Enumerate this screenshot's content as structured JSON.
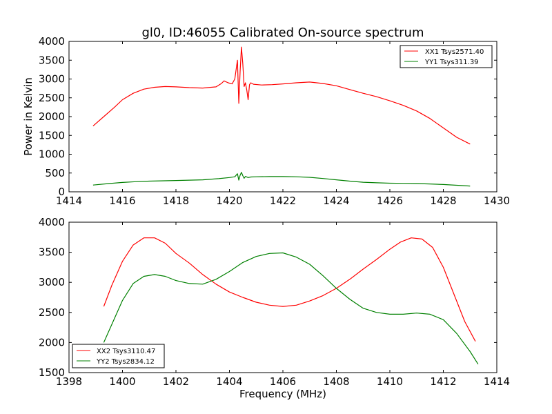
{
  "figure": {
    "title": "gl0, ID:46055 Calibrated On-source spectrum"
  },
  "chart_data": [
    {
      "type": "line",
      "title": "gl0, ID:46055 Calibrated On-source spectrum",
      "xlabel": "",
      "ylabel": "Power in Kelvin",
      "xlim": [
        1414,
        1430
      ],
      "ylim": [
        0,
        4000
      ],
      "xticks": [
        "1414",
        "1416",
        "1418",
        "1420",
        "1422",
        "1424",
        "1426",
        "1428",
        "1430"
      ],
      "yticks": [
        "0",
        "500",
        "1000",
        "1500",
        "2000",
        "2500",
        "3000",
        "3500",
        "4000"
      ],
      "grid": false,
      "legend_position": "top-right",
      "series": [
        {
          "name": "XX1 Tsys2571.40",
          "color": "#ff0000",
          "x": [
            1414.9,
            1415.3,
            1415.7,
            1416.0,
            1416.4,
            1416.8,
            1417.2,
            1417.6,
            1418.0,
            1418.5,
            1419.0,
            1419.5,
            1419.7,
            1419.8,
            1419.95,
            1420.1,
            1420.2,
            1420.3,
            1420.35,
            1420.4,
            1420.45,
            1420.5,
            1420.55,
            1420.6,
            1420.65,
            1420.7,
            1420.75,
            1420.8,
            1420.9,
            1421.2,
            1421.6,
            1422.0,
            1422.5,
            1423.0,
            1423.5,
            1424.0,
            1424.5,
            1425.0,
            1425.5,
            1426.0,
            1426.5,
            1427.0,
            1427.5,
            1428.0,
            1428.5,
            1429.0
          ],
          "y": [
            1750,
            2000,
            2250,
            2450,
            2620,
            2730,
            2780,
            2800,
            2790,
            2770,
            2760,
            2790,
            2880,
            2950,
            2900,
            2870,
            3000,
            3500,
            2350,
            3200,
            3850,
            3400,
            2800,
            2900,
            2700,
            2450,
            2850,
            2900,
            2860,
            2840,
            2850,
            2870,
            2900,
            2920,
            2880,
            2820,
            2720,
            2620,
            2530,
            2420,
            2300,
            2150,
            1950,
            1700,
            1450,
            1270
          ]
        },
        {
          "name": "YY1 Tsys311.39",
          "color": "#008000",
          "x": [
            1414.9,
            1415.5,
            1416.0,
            1416.5,
            1417.0,
            1418.0,
            1419.0,
            1419.6,
            1420.0,
            1420.2,
            1420.3,
            1420.35,
            1420.4,
            1420.45,
            1420.5,
            1420.55,
            1420.6,
            1420.7,
            1420.8,
            1421.0,
            1421.5,
            1422.0,
            1422.5,
            1423.0,
            1423.5,
            1424.0,
            1424.5,
            1425.0,
            1425.5,
            1426.0,
            1426.5,
            1427.0,
            1427.5,
            1428.0,
            1428.5,
            1429.0
          ],
          "y": [
            180,
            220,
            250,
            270,
            285,
            300,
            320,
            350,
            380,
            400,
            480,
            310,
            440,
            520,
            430,
            360,
            410,
            380,
            395,
            400,
            405,
            405,
            400,
            385,
            355,
            320,
            285,
            255,
            240,
            230,
            225,
            220,
            210,
            195,
            175,
            155
          ]
        }
      ]
    },
    {
      "type": "line",
      "title": "",
      "xlabel": "Frequency (MHz)",
      "ylabel": "",
      "xlim": [
        1398,
        1414
      ],
      "ylim": [
        1500,
        4000
      ],
      "xticks": [
        "1398",
        "1400",
        "1402",
        "1404",
        "1406",
        "1408",
        "1410",
        "1412",
        "1414"
      ],
      "yticks": [
        "1500",
        "2000",
        "2500",
        "3000",
        "3500",
        "4000"
      ],
      "grid": false,
      "legend_position": "bottom-left",
      "series": [
        {
          "name": "XX2 Tsys3110.47",
          "color": "#ff0000",
          "x": [
            1399.3,
            1399.6,
            1400.0,
            1400.4,
            1400.8,
            1401.2,
            1401.6,
            1402.0,
            1402.5,
            1403.0,
            1403.5,
            1404.0,
            1404.5,
            1405.0,
            1405.5,
            1406.0,
            1406.5,
            1407.0,
            1407.5,
            1408.0,
            1408.5,
            1409.0,
            1409.5,
            1410.0,
            1410.4,
            1410.8,
            1411.2,
            1411.6,
            1412.0,
            1412.4,
            1412.8,
            1413.2
          ],
          "y": [
            2600,
            2950,
            3350,
            3620,
            3740,
            3740,
            3650,
            3480,
            3320,
            3130,
            2970,
            2840,
            2750,
            2670,
            2620,
            2600,
            2620,
            2690,
            2780,
            2900,
            3050,
            3220,
            3380,
            3550,
            3670,
            3740,
            3720,
            3580,
            3250,
            2800,
            2350,
            2020
          ]
        },
        {
          "name": "YY2 Tsys2834.12",
          "color": "#008000",
          "x": [
            1399.3,
            1399.7,
            1400.0,
            1400.4,
            1400.8,
            1401.2,
            1401.6,
            1402.0,
            1402.5,
            1403.0,
            1403.5,
            1404.0,
            1404.5,
            1405.0,
            1405.5,
            1406.0,
            1406.5,
            1407.0,
            1407.5,
            1408.0,
            1408.5,
            1409.0,
            1409.5,
            1410.0,
            1410.5,
            1411.0,
            1411.5,
            1412.0,
            1412.5,
            1413.0,
            1413.3
          ],
          "y": [
            2000,
            2400,
            2700,
            2980,
            3100,
            3130,
            3100,
            3030,
            2980,
            2970,
            3050,
            3180,
            3330,
            3430,
            3480,
            3490,
            3420,
            3300,
            3110,
            2900,
            2720,
            2570,
            2500,
            2470,
            2470,
            2490,
            2470,
            2380,
            2150,
            1850,
            1640
          ]
        }
      ]
    }
  ]
}
